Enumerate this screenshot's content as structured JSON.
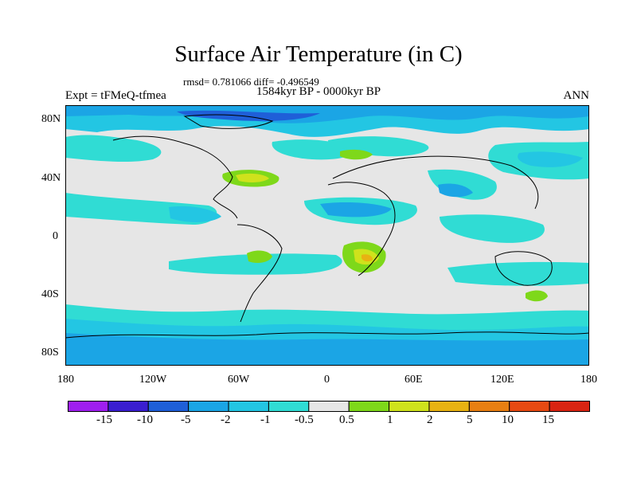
{
  "title": "Surface Air Temperature (in C)",
  "stats": "rmsd= 0.781066 diff= -0.496549",
  "period": "1584kyr BP - 0000kyr BP",
  "experiment": "Expt = tFMeQ-tfmea",
  "season": "ANN",
  "lat_labels": [
    "80N",
    "40N",
    "0",
    "40S",
    "80S"
  ],
  "lon_labels": [
    "180",
    "120W",
    "60W",
    "0",
    "60E",
    "120E",
    "180"
  ],
  "colorbar": {
    "labels": [
      "-15",
      "-10",
      "-5",
      "-2",
      "-1",
      "-0.5",
      "0.5",
      "1",
      "2",
      "5",
      "10",
      "15"
    ],
    "colors": [
      "#9f1fef",
      "#3a1fd0",
      "#1f5fd8",
      "#1ba5e5",
      "#23c6e3",
      "#30dcd4",
      "#e6e6e6",
      "#7ed81a",
      "#cfe21c",
      "#e8b212",
      "#e87f12",
      "#e74a12",
      "#d92412"
    ]
  },
  "map_colors": {
    "neutral": "#e6e6e6",
    "light_cyan": "#30dcd4",
    "cyan": "#23c6e3",
    "sky": "#1ba5e5",
    "green": "#7ed81a",
    "yellow": "#cfe21c",
    "orange": "#e8b212",
    "red": "#e74a12"
  }
}
